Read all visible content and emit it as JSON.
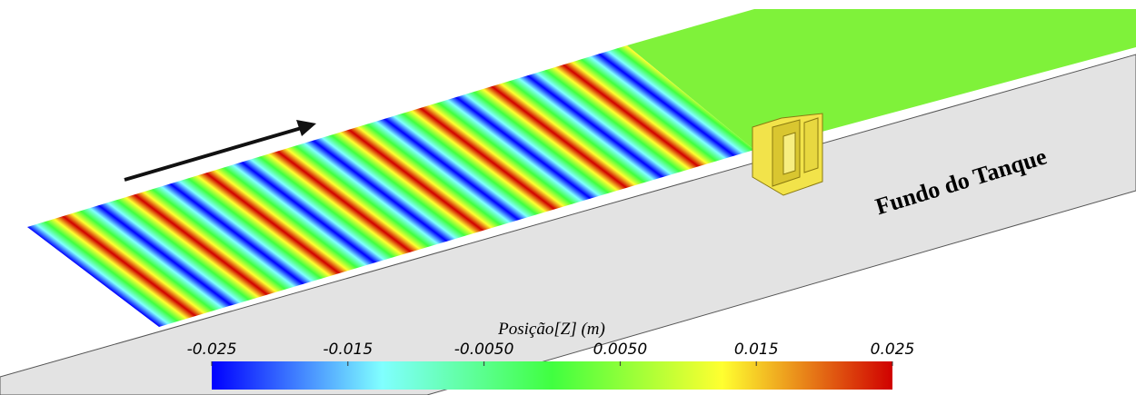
{
  "annotation": "Fundo do Tanque",
  "colorbar": {
    "title": "Posição[Z] (m)",
    "clim": [
      -0.025,
      0.025
    ],
    "ticks": [
      -0.025,
      -0.015,
      {
        "value": -0.005,
        "label": "-0.0050"
      },
      {
        "value": 0.005,
        "label": "0.0050"
      },
      0.015,
      0.025
    ],
    "colors": [
      "#0000ff",
      "#80ffff",
      "#40ff40",
      "#ffff30",
      "#d00000"
    ]
  }
}
